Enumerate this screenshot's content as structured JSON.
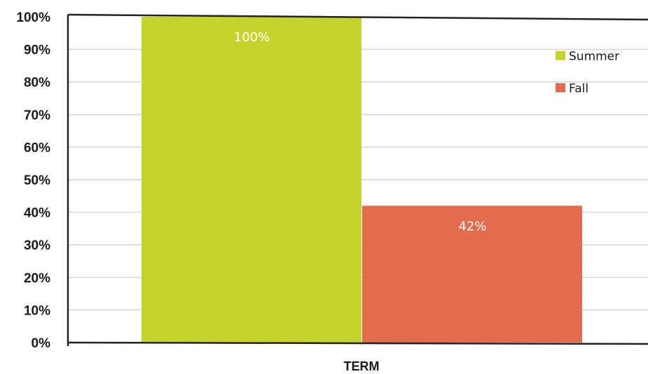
{
  "chart_data": {
    "type": "bar",
    "categories": [
      "TERM"
    ],
    "series": [
      {
        "name": "Summer",
        "values": [
          100
        ],
        "color": "#c6d22e",
        "label": "100%"
      },
      {
        "name": "Fall",
        "values": [
          42
        ],
        "color": "#e36c4c",
        "label": "42%"
      }
    ],
    "xlabel": "TERM",
    "ylabel": "",
    "ylim": [
      0,
      100
    ],
    "yticks": [
      0,
      10,
      20,
      30,
      40,
      50,
      60,
      70,
      80,
      90,
      100
    ],
    "ytick_labels": [
      "0%",
      "10%",
      "20%",
      "30%",
      "40%",
      "50%",
      "60%",
      "70%",
      "80%",
      "90%",
      "100%"
    ],
    "grid": true,
    "legend_position": "top-right"
  }
}
